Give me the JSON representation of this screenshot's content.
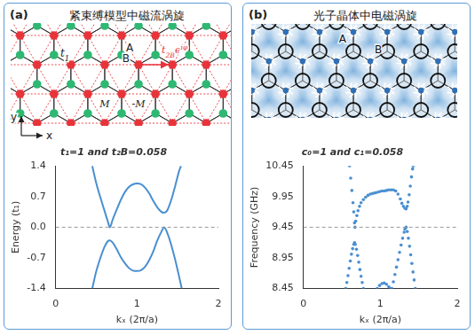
{
  "panels": [
    {
      "label": "(a)",
      "heading": "紧束缚模型中磁流涡旋",
      "diagram": {
        "site_a": "A",
        "site_b": "B",
        "hop_nn": {
          "base": "t",
          "sub": "1"
        },
        "hop_nnn": {
          "base": "t",
          "sub": "2B",
          "tail": "e",
          "sup": "iφ"
        },
        "flux_plus": "M",
        "flux_minus": "-M",
        "axis_x": "x",
        "axis_y": "y"
      }
    },
    {
      "label": "(b)",
      "heading": "光子晶体中电磁涡旋",
      "diagram": {
        "site_a": "A",
        "site_b": "B"
      }
    }
  ],
  "chart_data": [
    {
      "type": "line",
      "title": "t₁=1 and t₂B=0.058",
      "x_label": "kₓ (2π/a)",
      "y_label": "Energy (t₁)",
      "xlim": [
        0,
        2
      ],
      "xticks": [
        0,
        1,
        2
      ],
      "ylim": [
        -1.4,
        1.4
      ],
      "yticks": [
        -1.4,
        -0.7,
        {
          "value": 0,
          "label": "0.0"
        },
        0.7,
        1.4
      ],
      "hline": 0,
      "grid": false,
      "series": [
        {
          "color": "#4a8fd0",
          "line_style": "solid",
          "x": [
            0.45,
            0.5,
            0.55,
            0.6,
            0.64,
            0.667,
            0.7,
            0.75,
            0.8,
            0.85,
            0.9,
            0.95,
            1.0,
            1.05,
            1.1,
            1.15,
            1.2,
            1.25,
            1.3,
            1.333,
            1.37,
            1.42,
            1.47,
            1.52,
            1.54
          ],
          "values": [
            1.4,
            1.0,
            0.68,
            0.38,
            0.14,
            0.0,
            0.17,
            0.4,
            0.62,
            0.8,
            0.92,
            0.98,
            1.0,
            0.98,
            0.9,
            0.77,
            0.6,
            0.45,
            0.35,
            0.33,
            0.38,
            0.62,
            0.95,
            1.3,
            1.4
          ]
        },
        {
          "color": "#4a8fd0",
          "line_style": "solid",
          "x": [
            0.45,
            0.5,
            0.55,
            0.6,
            0.64,
            0.667,
            0.7,
            0.75,
            0.8,
            0.85,
            0.9,
            0.95,
            1.0,
            1.05,
            1.1,
            1.15,
            1.2,
            1.25,
            1.3,
            1.333,
            1.37,
            1.42,
            1.47,
            1.52,
            1.55
          ],
          "values": [
            -1.4,
            -1.0,
            -0.7,
            -0.45,
            -0.32,
            -0.3,
            -0.35,
            -0.5,
            -0.68,
            -0.82,
            -0.93,
            -0.99,
            -1.0,
            -0.98,
            -0.9,
            -0.75,
            -0.55,
            -0.3,
            -0.1,
            0.0,
            -0.12,
            -0.4,
            -0.75,
            -1.15,
            -1.4
          ]
        }
      ]
    },
    {
      "type": "scatter",
      "title": "c₀=1 and c₁=0.058",
      "x_label": "kₓ (2π/a)",
      "y_label": "Frequency (GHz)",
      "xlim": [
        0,
        2
      ],
      "xticks": [
        0,
        1,
        2
      ],
      "ylim": [
        8.45,
        10.45
      ],
      "yticks": [
        8.45,
        8.95,
        9.45,
        9.95,
        10.45
      ],
      "hline": 9.45,
      "grid": false,
      "series": [
        {
          "color": "#4a8fd0",
          "marker": "circle",
          "x": [
            0.6,
            0.615,
            0.63,
            0.645,
            0.655,
            0.665,
            0.67,
            0.68,
            0.695,
            0.71,
            0.73,
            0.75,
            0.78,
            0.81,
            0.84,
            0.87,
            0.9,
            0.93,
            0.96,
            0.99,
            1.02,
            1.05,
            1.08,
            1.11,
            1.14,
            1.17,
            1.2,
            1.23,
            1.26,
            1.28,
            1.3,
            1.32,
            1.335,
            1.35,
            1.36,
            1.375,
            1.39,
            1.405,
            1.42,
            1.428
          ],
          "values": [
            10.45,
            10.25,
            10.05,
            9.85,
            9.7,
            9.52,
            9.45,
            9.55,
            9.64,
            9.72,
            9.79,
            9.85,
            9.9,
            9.94,
            9.97,
            9.99,
            10.0,
            10.01,
            10.02,
            10.03,
            10.04,
            10.04,
            10.05,
            10.06,
            10.06,
            10.06,
            10.04,
            9.99,
            9.91,
            9.84,
            9.79,
            9.76,
            9.75,
            9.79,
            9.86,
            9.98,
            10.12,
            10.27,
            10.4,
            10.45
          ]
        },
        {
          "color": "#4a8fd0",
          "marker": "circle",
          "x": [
            0.55,
            0.565,
            0.58,
            0.595,
            0.61,
            0.625,
            0.64,
            0.655,
            0.665,
            0.675,
            0.69,
            0.705,
            0.72,
            0.735,
            0.75,
            0.765,
            0.78
          ],
          "values": [
            8.45,
            8.55,
            8.66,
            8.78,
            8.9,
            9.01,
            9.1,
            9.17,
            9.2,
            9.17,
            9.09,
            8.99,
            8.88,
            8.76,
            8.65,
            8.55,
            8.45
          ]
        },
        {
          "color": "#4a8fd0",
          "marker": "circle",
          "x": [
            0.96,
            0.99,
            1.02,
            1.05,
            1.08,
            1.11,
            1.13
          ],
          "values": [
            8.45,
            8.5,
            8.53,
            8.54,
            8.52,
            8.48,
            8.45
          ]
        },
        {
          "color": "#4a8fd0",
          "marker": "circle",
          "x": [
            1.15,
            1.17,
            1.19,
            1.21,
            1.23,
            1.25,
            1.27,
            1.29,
            1.31,
            1.32,
            1.335,
            1.35,
            1.365,
            1.38,
            1.395,
            1.41,
            1.425,
            1.44,
            1.455
          ],
          "values": [
            8.45,
            8.56,
            8.68,
            8.8,
            8.92,
            9.04,
            9.16,
            9.27,
            9.37,
            9.42,
            9.45,
            9.38,
            9.27,
            9.14,
            9.0,
            8.86,
            8.72,
            8.59,
            8.45
          ]
        }
      ]
    }
  ]
}
